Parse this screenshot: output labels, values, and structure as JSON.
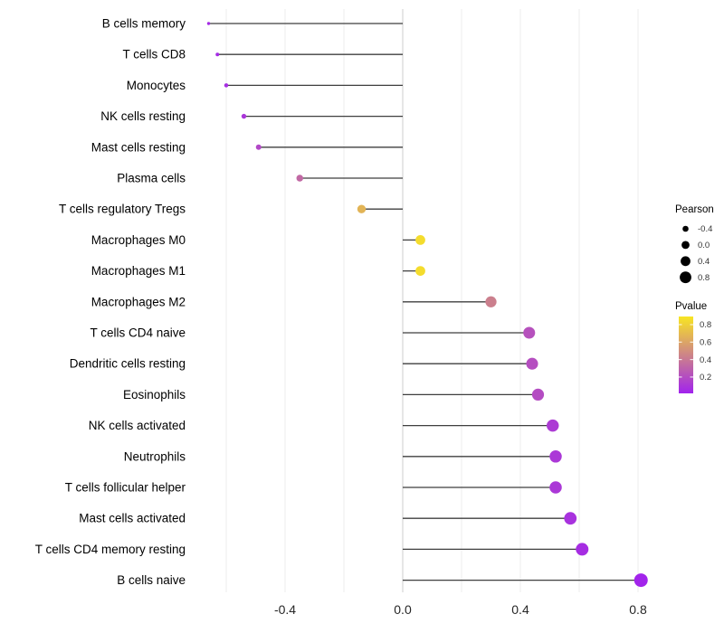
{
  "chart_data": {
    "type": "lollipop",
    "title": "",
    "xlabel": "",
    "ylabel": "",
    "x_ticks": [
      "-0.4",
      "0.0",
      "0.4",
      "0.8"
    ],
    "x_tick_values": [
      -0.4,
      0.0,
      0.4,
      0.8
    ],
    "xlim": [
      -0.72,
      0.85
    ],
    "gridline_values": [
      -0.6,
      -0.4,
      -0.2,
      0.0,
      0.2,
      0.4,
      0.6,
      0.8
    ],
    "grid": "vertical-only",
    "legend_position": "right",
    "categories": [
      "B cells memory",
      "T cells CD8",
      "Monocytes",
      "NK cells resting",
      "Mast cells resting",
      "Plasma cells",
      "T cells regulatory  Tregs",
      "Macrophages M0",
      "Macrophages M1",
      "Macrophages M2",
      "T cells CD4 naive",
      "Dendritic cells resting",
      "Eosinophils",
      "NK cells activated",
      "Neutrophils",
      "T cells follicular helper",
      "Mast cells activated",
      "T cells CD4 memory resting",
      "B cells naive"
    ],
    "series": [
      {
        "name": "Pearson",
        "values": [
          -0.66,
          -0.63,
          -0.6,
          -0.54,
          -0.49,
          -0.35,
          -0.14,
          0.06,
          0.06,
          0.3,
          0.43,
          0.44,
          0.46,
          0.51,
          0.52,
          0.52,
          0.57,
          0.61,
          0.81
        ]
      },
      {
        "name": "Pvalue",
        "values": [
          0.05,
          0.05,
          0.06,
          0.1,
          0.18,
          0.33,
          0.67,
          0.85,
          0.85,
          0.43,
          0.22,
          0.21,
          0.2,
          0.12,
          0.11,
          0.11,
          0.08,
          0.06,
          0.02
        ]
      }
    ],
    "legend": {
      "size": {
        "title": "Pearson",
        "labels": [
          "-0.4",
          "0.0",
          "0.4",
          "0.8"
        ],
        "values": [
          -0.4,
          0.0,
          0.4,
          0.8
        ],
        "dot_color": "#000000"
      },
      "color": {
        "title": "Pvalue",
        "labels": [
          "0.8",
          "0.6",
          "0.4",
          "0.2"
        ],
        "values": [
          0.8,
          0.6,
          0.4,
          0.2
        ],
        "low_color": "#A020F0",
        "high_color": "#F9E721",
        "bar_value_range": [
          0.013,
          0.893
        ]
      }
    },
    "colors": {
      "stem": "#3f3f3f",
      "grid": "#ececec",
      "zero_grid": "#cdcdcd",
      "category_text": "#000000",
      "axis_text": "#262626",
      "legend_text": "#333333",
      "background": "#ffffff"
    }
  }
}
